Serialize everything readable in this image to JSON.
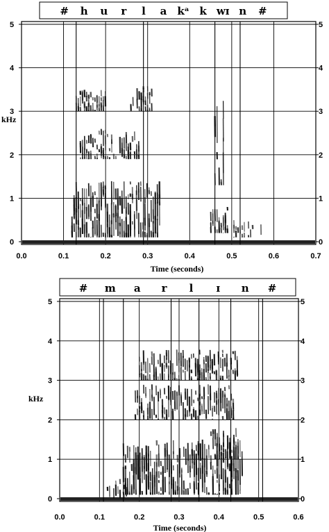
{
  "chart_data": [
    {
      "type": "spectrogram",
      "segments": [
        "#",
        "h",
        "u",
        "r",
        "l",
        "a",
        "kᵃ",
        "k",
        "wɪ",
        "n",
        "#"
      ],
      "xlabel": "Time (seconds)",
      "ylabel": "kHz",
      "xticks": [
        "0.0",
        "0.1",
        "0.2",
        "0.3",
        "0.4",
        "0.5",
        "0.6",
        "0.7"
      ],
      "yticks": [
        "0",
        "1",
        "2",
        "3",
        "4",
        "5"
      ],
      "xlim": [
        0,
        0.7
      ],
      "ylim": [
        0,
        5
      ],
      "grid": true,
      "segment_boundaries": [
        0.13,
        0.29,
        0.46,
        0.52
      ],
      "energy_regions": [
        {
          "t0": 0.12,
          "t1": 0.33,
          "f0": 0.1,
          "f1": 1.4,
          "density": 0.95
        },
        {
          "t0": 0.14,
          "t1": 0.28,
          "f0": 1.9,
          "f1": 2.6,
          "density": 0.7
        },
        {
          "t0": 0.13,
          "t1": 0.2,
          "f0": 3.0,
          "f1": 3.5,
          "density": 0.75
        },
        {
          "t0": 0.26,
          "t1": 0.31,
          "f0": 3.0,
          "f1": 3.6,
          "density": 0.65
        },
        {
          "t0": 0.45,
          "t1": 0.49,
          "f0": 0.2,
          "f1": 0.8,
          "density": 0.9
        },
        {
          "t0": 0.46,
          "t1": 0.48,
          "f0": 1.3,
          "f1": 3.3,
          "density": 0.4
        },
        {
          "t0": 0.5,
          "t1": 0.57,
          "f0": 0.1,
          "f1": 0.5,
          "density": 0.35
        }
      ]
    },
    {
      "type": "spectrogram",
      "segments": [
        "#",
        "m",
        "a",
        "r",
        "l",
        "ɪ",
        "n",
        "#"
      ],
      "xlabel": "Time (seconds)",
      "ylabel": "kHz",
      "xticks": [
        "0.0",
        "0.1",
        "0.2",
        "0.3",
        "0.4",
        "0.5",
        "0.6"
      ],
      "yticks": [
        "0",
        "1",
        "2",
        "3",
        "4",
        "5"
      ],
      "xlim": [
        0,
        0.6
      ],
      "ylim": [
        0,
        5
      ],
      "grid": true,
      "segment_boundaries": [
        0.11,
        0.16,
        0.28,
        0.35,
        0.43,
        0.51
      ],
      "energy_regions": [
        {
          "t0": 0.16,
          "t1": 0.46,
          "f0": 0.1,
          "f1": 1.5,
          "density": 0.95
        },
        {
          "t0": 0.19,
          "t1": 0.44,
          "f0": 2.0,
          "f1": 2.9,
          "density": 0.7
        },
        {
          "t0": 0.2,
          "t1": 0.45,
          "f0": 3.0,
          "f1": 3.8,
          "density": 0.7
        },
        {
          "t0": 0.38,
          "t1": 0.45,
          "f0": 1.0,
          "f1": 1.8,
          "density": 0.6
        },
        {
          "t0": 0.12,
          "t1": 0.17,
          "f0": 0.0,
          "f1": 0.5,
          "density": 0.3
        }
      ]
    }
  ]
}
